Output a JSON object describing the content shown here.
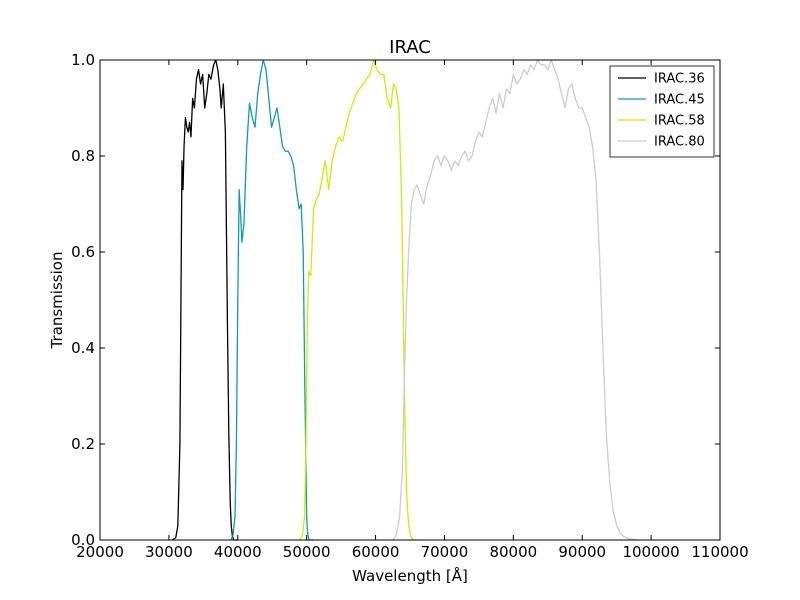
{
  "chart_data": {
    "type": "line",
    "title": "IRAC",
    "xlabel": "Wavelength [Å]",
    "ylabel": "Transmission",
    "xlim": [
      20000,
      110000
    ],
    "ylim": [
      0.0,
      1.0
    ],
    "x_ticks": [
      20000,
      30000,
      40000,
      50000,
      60000,
      70000,
      80000,
      90000,
      100000,
      110000
    ],
    "x_tick_labels": [
      "20000",
      "30000",
      "40000",
      "50000",
      "60000",
      "70000",
      "80000",
      "90000",
      "100000",
      "110000"
    ],
    "y_ticks": [
      0.0,
      0.2,
      0.4,
      0.6,
      0.8,
      1.0
    ],
    "y_tick_labels": [
      "0.0",
      "0.2",
      "0.4",
      "0.6",
      "0.8",
      "1.0"
    ],
    "grid": false,
    "legend_position": "top-right",
    "series": [
      {
        "name": "IRAC.36",
        "color": "#000000",
        "x": [
          30500,
          31000,
          31300,
          31600,
          31800,
          31900,
          32050,
          32200,
          32400,
          32600,
          32800,
          33000,
          33200,
          33450,
          33700,
          34000,
          34300,
          34600,
          34900,
          35200,
          35500,
          35800,
          36100,
          36500,
          36800,
          37100,
          37400,
          37600,
          37900,
          38200,
          38500,
          38700,
          38900,
          39050,
          39200,
          39400,
          39600,
          39800,
          40000
        ],
        "y": [
          0.0,
          0.005,
          0.03,
          0.2,
          0.6,
          0.79,
          0.73,
          0.82,
          0.88,
          0.86,
          0.85,
          0.87,
          0.84,
          0.92,
          0.9,
          0.96,
          0.98,
          0.95,
          0.97,
          0.9,
          0.93,
          0.97,
          0.96,
          0.99,
          1.0,
          0.98,
          0.94,
          0.9,
          0.95,
          0.85,
          0.45,
          0.22,
          0.08,
          0.03,
          0.01,
          0.0,
          0.0,
          0.0,
          0.0
        ]
      },
      {
        "name": "IRAC.45",
        "color": "#0e9bb3",
        "x": [
          39000,
          39300,
          39600,
          39800,
          40000,
          40200,
          40400,
          40600,
          40900,
          41300,
          41700,
          42100,
          42500,
          42900,
          43300,
          43700,
          44100,
          44500,
          44900,
          45300,
          45700,
          46100,
          46500,
          46900,
          47300,
          47700,
          48100,
          48500,
          48900,
          49200,
          49500,
          49750,
          49900,
          50000,
          50100,
          50200,
          50350,
          50500,
          50700,
          51000
        ],
        "y": [
          0.0,
          0.01,
          0.05,
          0.2,
          0.5,
          0.73,
          0.68,
          0.62,
          0.66,
          0.82,
          0.91,
          0.88,
          0.86,
          0.93,
          0.97,
          1.0,
          0.98,
          0.92,
          0.86,
          0.88,
          0.9,
          0.86,
          0.82,
          0.81,
          0.81,
          0.8,
          0.78,
          0.73,
          0.69,
          0.7,
          0.6,
          0.3,
          0.15,
          0.05,
          0.02,
          0.01,
          0.0,
          0.0,
          0.0,
          0.0
        ]
      },
      {
        "name": "IRAC.58",
        "color": "#ccee00",
        "x": [
          49000,
          49400,
          49700,
          49900,
          50100,
          50300,
          50600,
          51000,
          51400,
          51800,
          52200,
          52700,
          53200,
          53700,
          54200,
          54700,
          55200,
          55700,
          56200,
          56700,
          57200,
          57700,
          58200,
          58700,
          59200,
          59700,
          60200,
          60700,
          61200,
          61700,
          62200,
          62600,
          63000,
          63400,
          63800,
          64200,
          64500,
          64800,
          65100,
          65400,
          66000
        ],
        "y": [
          0.0,
          0.01,
          0.05,
          0.2,
          0.45,
          0.56,
          0.55,
          0.69,
          0.71,
          0.72,
          0.75,
          0.79,
          0.73,
          0.79,
          0.82,
          0.84,
          0.83,
          0.86,
          0.89,
          0.91,
          0.93,
          0.94,
          0.95,
          0.96,
          0.97,
          1.0,
          0.98,
          0.97,
          0.97,
          0.92,
          0.9,
          0.95,
          0.94,
          0.9,
          0.7,
          0.3,
          0.1,
          0.03,
          0.01,
          0.0,
          0.0
        ]
      },
      {
        "name": "IRAC.80",
        "color": "#cccccc",
        "x": [
          62500,
          63000,
          63500,
          63900,
          64200,
          64500,
          64800,
          65200,
          65600,
          66000,
          66500,
          67000,
          67500,
          68000,
          68500,
          69000,
          69500,
          70000,
          70500,
          71000,
          71500,
          72000,
          72500,
          73000,
          73500,
          74000,
          74500,
          75000,
          75500,
          76000,
          76500,
          77000,
          77500,
          78000,
          78500,
          79000,
          79500,
          80000,
          80500,
          81000,
          81500,
          82000,
          82500,
          83000,
          83500,
          84000,
          84500,
          85000,
          85500,
          86000,
          86500,
          87000,
          87500,
          88000,
          88500,
          89000,
          89500,
          90000,
          90500,
          91000,
          91500,
          92000,
          92500,
          93000,
          93500,
          94000,
          94500,
          95000,
          95500,
          96000,
          96500,
          97000,
          98000
        ],
        "y": [
          0.0,
          0.01,
          0.05,
          0.15,
          0.35,
          0.5,
          0.6,
          0.7,
          0.73,
          0.74,
          0.72,
          0.7,
          0.74,
          0.76,
          0.79,
          0.8,
          0.78,
          0.8,
          0.79,
          0.77,
          0.79,
          0.78,
          0.8,
          0.81,
          0.79,
          0.8,
          0.83,
          0.85,
          0.84,
          0.87,
          0.9,
          0.92,
          0.89,
          0.93,
          0.9,
          0.94,
          0.93,
          0.97,
          0.95,
          0.96,
          0.98,
          0.97,
          0.99,
          0.98,
          1.0,
          0.99,
          0.99,
          0.98,
          1.0,
          0.98,
          0.96,
          0.93,
          0.9,
          0.94,
          0.95,
          0.92,
          0.9,
          0.9,
          0.88,
          0.86,
          0.82,
          0.75,
          0.6,
          0.4,
          0.22,
          0.12,
          0.06,
          0.03,
          0.015,
          0.008,
          0.004,
          0.002,
          0.0
        ]
      }
    ]
  }
}
